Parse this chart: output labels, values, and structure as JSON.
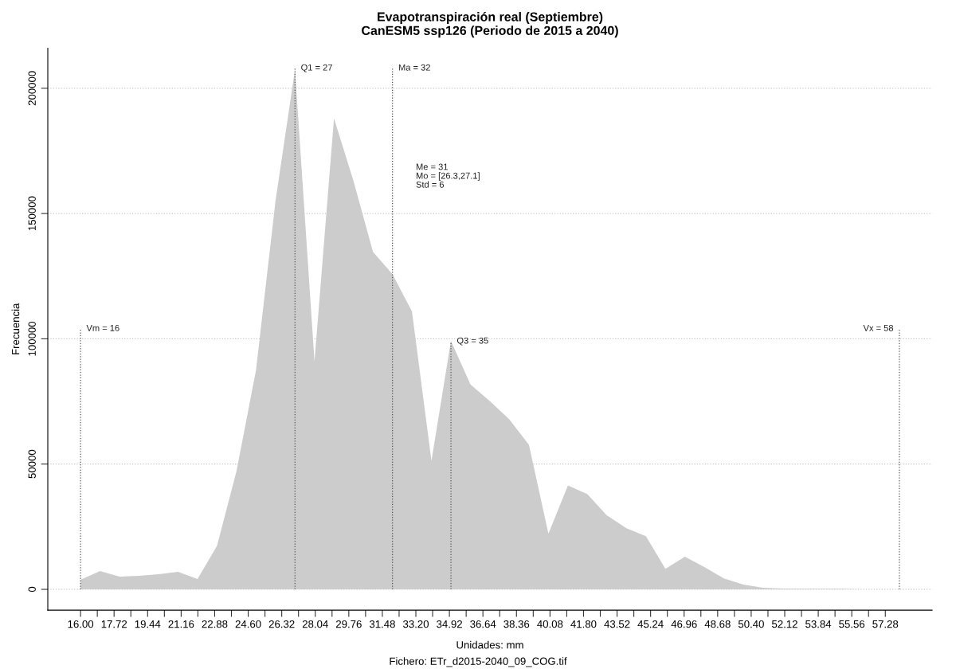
{
  "chart_data": {
    "type": "area",
    "title": "Evapotranspiración real (Septiembre)\nCanESM5 ssp126 (Periodo de 2015 a 2040)",
    "xlabel": "Unidades: mm",
    "ylabel": "Frecuencia",
    "x": [
      16,
      17,
      18,
      19,
      20,
      21,
      22,
      23,
      24,
      25,
      26,
      27,
      28,
      29,
      30,
      31,
      32,
      33,
      34,
      35,
      36,
      37,
      38,
      39,
      40,
      41,
      42,
      43,
      44,
      45,
      46,
      47,
      48,
      49,
      50,
      51,
      52,
      53,
      54,
      55,
      56,
      57,
      58
    ],
    "series": [
      {
        "color": "#cccccc",
        "values": [
          3800,
          7300,
          5100,
          5400,
          6000,
          7000,
          4100,
          17400,
          47200,
          87500,
          155000,
          207500,
          91000,
          188000,
          163000,
          134700,
          125800,
          110900,
          51300,
          99200,
          81800,
          75100,
          67800,
          57700,
          22200,
          41500,
          38000,
          29500,
          24400,
          21200,
          8200,
          13000,
          8900,
          4400,
          1900,
          600,
          300,
          200,
          200,
          200,
          0,
          0,
          0
        ]
      }
    ],
    "xlim": [
      14.32,
      59.68
    ],
    "ylim": [
      -8300,
      216000
    ],
    "xticks": [
      {
        "value": 16.0,
        "label": "16.00"
      },
      {
        "value": 16.86,
        "label": null
      },
      {
        "value": 17.72,
        "label": "17.72"
      },
      {
        "value": 18.58,
        "label": null
      },
      {
        "value": 19.44,
        "label": "19.44"
      },
      {
        "value": 20.3,
        "label": null
      },
      {
        "value": 21.16,
        "label": "21.16"
      },
      {
        "value": 22.02,
        "label": null
      },
      {
        "value": 22.88,
        "label": "22.88"
      },
      {
        "value": 23.74,
        "label": null
      },
      {
        "value": 24.6,
        "label": "24.60"
      },
      {
        "value": 25.46,
        "label": null
      },
      {
        "value": 26.32,
        "label": "26.32"
      },
      {
        "value": 27.18,
        "label": null
      },
      {
        "value": 28.04,
        "label": "28.04"
      },
      {
        "value": 28.9,
        "label": null
      },
      {
        "value": 29.76,
        "label": "29.76"
      },
      {
        "value": 30.62,
        "label": null
      },
      {
        "value": 31.48,
        "label": "31.48"
      },
      {
        "value": 32.34,
        "label": null
      },
      {
        "value": 33.2,
        "label": "33.20"
      },
      {
        "value": 34.06,
        "label": null
      },
      {
        "value": 34.92,
        "label": "34.92"
      },
      {
        "value": 35.78,
        "label": null
      },
      {
        "value": 36.64,
        "label": "36.64"
      },
      {
        "value": 37.5,
        "label": null
      },
      {
        "value": 38.36,
        "label": "38.36"
      },
      {
        "value": 39.22,
        "label": null
      },
      {
        "value": 40.08,
        "label": "40.08"
      },
      {
        "value": 40.94,
        "label": null
      },
      {
        "value": 41.8,
        "label": "41.80"
      },
      {
        "value": 42.66,
        "label": null
      },
      {
        "value": 43.52,
        "label": "43.52"
      },
      {
        "value": 44.38,
        "label": null
      },
      {
        "value": 45.24,
        "label": "45.24"
      },
      {
        "value": 46.1,
        "label": null
      },
      {
        "value": 46.96,
        "label": "46.96"
      },
      {
        "value": 47.82,
        "label": null
      },
      {
        "value": 48.68,
        "label": "48.68"
      },
      {
        "value": 49.54,
        "label": null
      },
      {
        "value": 50.4,
        "label": "50.40"
      },
      {
        "value": 51.26,
        "label": null
      },
      {
        "value": 52.12,
        "label": "52.12"
      },
      {
        "value": 52.98,
        "label": null
      },
      {
        "value": 53.84,
        "label": "53.84"
      },
      {
        "value": 54.7,
        "label": null
      },
      {
        "value": 55.56,
        "label": "55.56"
      },
      {
        "value": 56.42,
        "label": null
      },
      {
        "value": 57.28,
        "label": "57.28"
      }
    ],
    "yticks": [
      0,
      50000,
      100000,
      150000,
      200000
    ],
    "grid": "y",
    "ref_lines": [
      {
        "axis": "x",
        "value": 16,
        "color": "#555555",
        "line_style": "dotted"
      },
      {
        "axis": "x",
        "value": 27,
        "color": "#555555",
        "line_style": "dotted"
      },
      {
        "axis": "x",
        "value": 32,
        "color": "#555555",
        "line_style": "dotted"
      },
      {
        "axis": "x",
        "value": 35,
        "color": "#555555",
        "line_style": "dotted"
      },
      {
        "axis": "x",
        "value": 58,
        "color": "#555555",
        "line_style": "dotted"
      }
    ],
    "annotations": [
      {
        "text": "Vm = 16",
        "x": 16,
        "y": 104000
      },
      {
        "text": "Q1 = 27",
        "x": 27,
        "y": 208000
      },
      {
        "text": "Ma = 32",
        "x": 32,
        "y": 208000
      },
      {
        "text": "Q3 = 35",
        "x": 35,
        "y": 99000
      },
      {
        "text": "Vx = 58",
        "x": 58,
        "y": 104000
      },
      "Me = 31\nMo = [26.3,27.1]\nStd = 6",
      "Fichero: ETr_d2015-2040_09_COG.tif"
    ]
  }
}
